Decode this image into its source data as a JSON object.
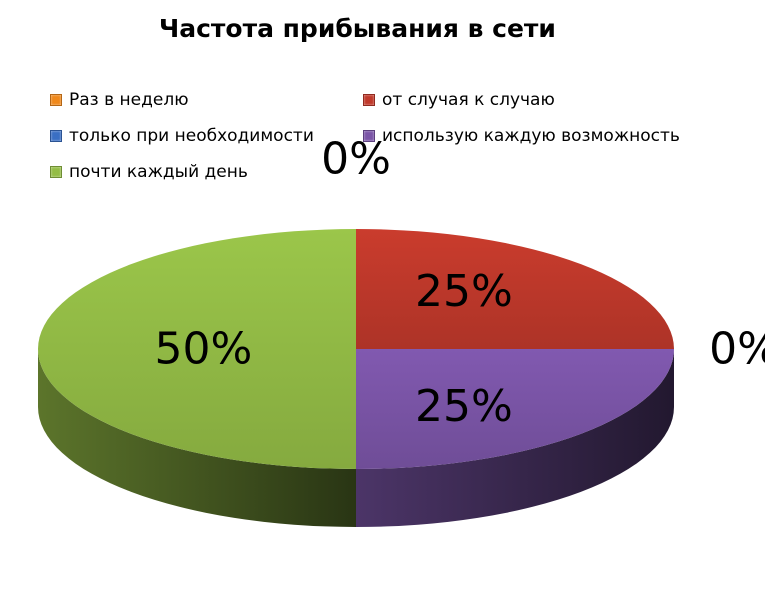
{
  "chart_data": {
    "type": "pie",
    "title": "Частота прибывания в сети",
    "categories": [
      "Раз в неделю",
      "от случая к случаю",
      "только при необходимости",
      "использую каждую возможность",
      "почти каждый день"
    ],
    "values": [
      0,
      25,
      0,
      25,
      50
    ],
    "data_labels": [
      "0%",
      "25%",
      "0%",
      "25%",
      "50%"
    ],
    "colors": [
      "#f0891c",
      "#c0392b",
      "#3a6fc4",
      "#7b55a8",
      "#94bd46"
    ],
    "legend_placement": "top",
    "style": "3d"
  }
}
